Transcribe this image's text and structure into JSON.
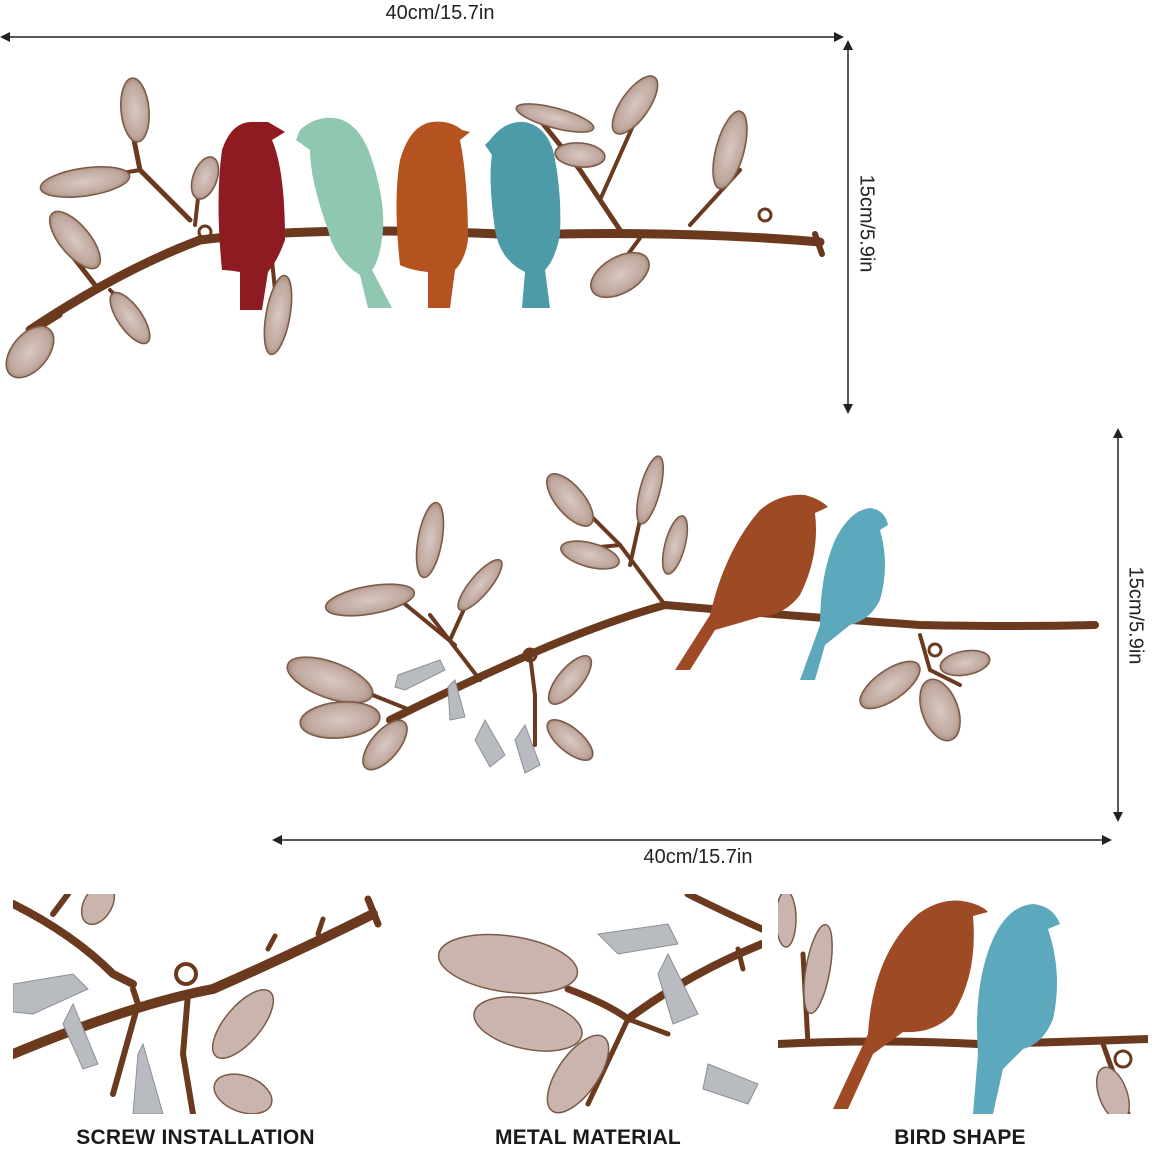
{
  "dimensions": {
    "top_width": "40cm/15.7in",
    "top_height": "15cm/5.9in",
    "middle_width": "40cm/15.7in",
    "middle_height": "15cm/5.9in"
  },
  "features": [
    {
      "label": "SCREW INSTALLATION"
    },
    {
      "label": "METAL MATERIAL"
    },
    {
      "label": "BIRD SHAPE"
    }
  ],
  "colors": {
    "branch": "#6b3a1e",
    "leaf_fill": "#c9b5ad",
    "leaf_edge": "#7a5a46",
    "bird_red": "#8e1a22",
    "bird_mint": "#8fc7b0",
    "bird_orange": "#b4531f",
    "bird_teal": "#4d9ba8",
    "bird_rust": "#9e4a24",
    "bird_blue": "#5ca8bd",
    "flower": "#b8bcc0"
  }
}
